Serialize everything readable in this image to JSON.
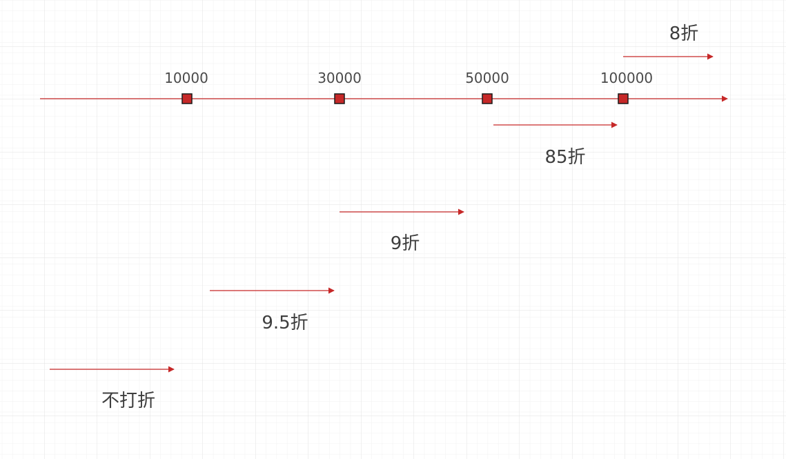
{
  "diagram": {
    "colors": {
      "line": "#c62828",
      "marker_fill": "#c62828",
      "marker_stroke": "#1a1a1a",
      "grid_minor": "#f1f1f1",
      "grid_major": "#e2e2e2",
      "text": "#444444"
    },
    "axis": {
      "ticks": [
        {
          "label": "10000"
        },
        {
          "label": "30000"
        },
        {
          "label": "50000"
        },
        {
          "label": "100000"
        }
      ]
    },
    "ranges": [
      {
        "label": "8折"
      },
      {
        "label": "85折"
      },
      {
        "label": "9折"
      },
      {
        "label": "9.5折"
      },
      {
        "label": "不打折"
      }
    ]
  }
}
